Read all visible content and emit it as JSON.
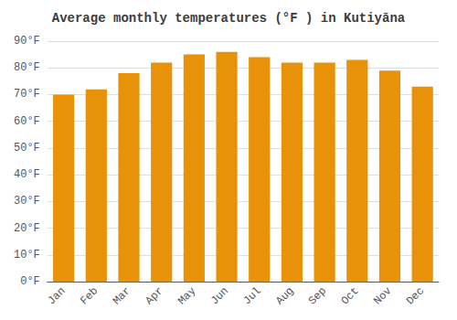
{
  "chart_data": {
    "type": "bar",
    "title": "Average monthly temperatures (°F ) in Kutiyāna",
    "categories": [
      "Jan",
      "Feb",
      "Mar",
      "Apr",
      "May",
      "Jun",
      "Jul",
      "Aug",
      "Sep",
      "Oct",
      "Nov",
      "Dec"
    ],
    "values": [
      70,
      72,
      78,
      82,
      85,
      86,
      84,
      82,
      82,
      83,
      79,
      73
    ],
    "color": "#E8920A",
    "ylim": [
      0,
      90
    ],
    "yticks": [
      {
        "value": 0,
        "label": "0°F"
      },
      {
        "value": 10,
        "label": "10°F"
      },
      {
        "value": 20,
        "label": "20°F"
      },
      {
        "value": 30,
        "label": "30°F"
      },
      {
        "value": 40,
        "label": "40°F"
      },
      {
        "value": 50,
        "label": "50°F"
      },
      {
        "value": 60,
        "label": "60°F"
      },
      {
        "value": 70,
        "label": "70°F"
      },
      {
        "value": 80,
        "label": "80°F"
      },
      {
        "value": 90,
        "label": "90°F"
      }
    ],
    "grid": true
  }
}
